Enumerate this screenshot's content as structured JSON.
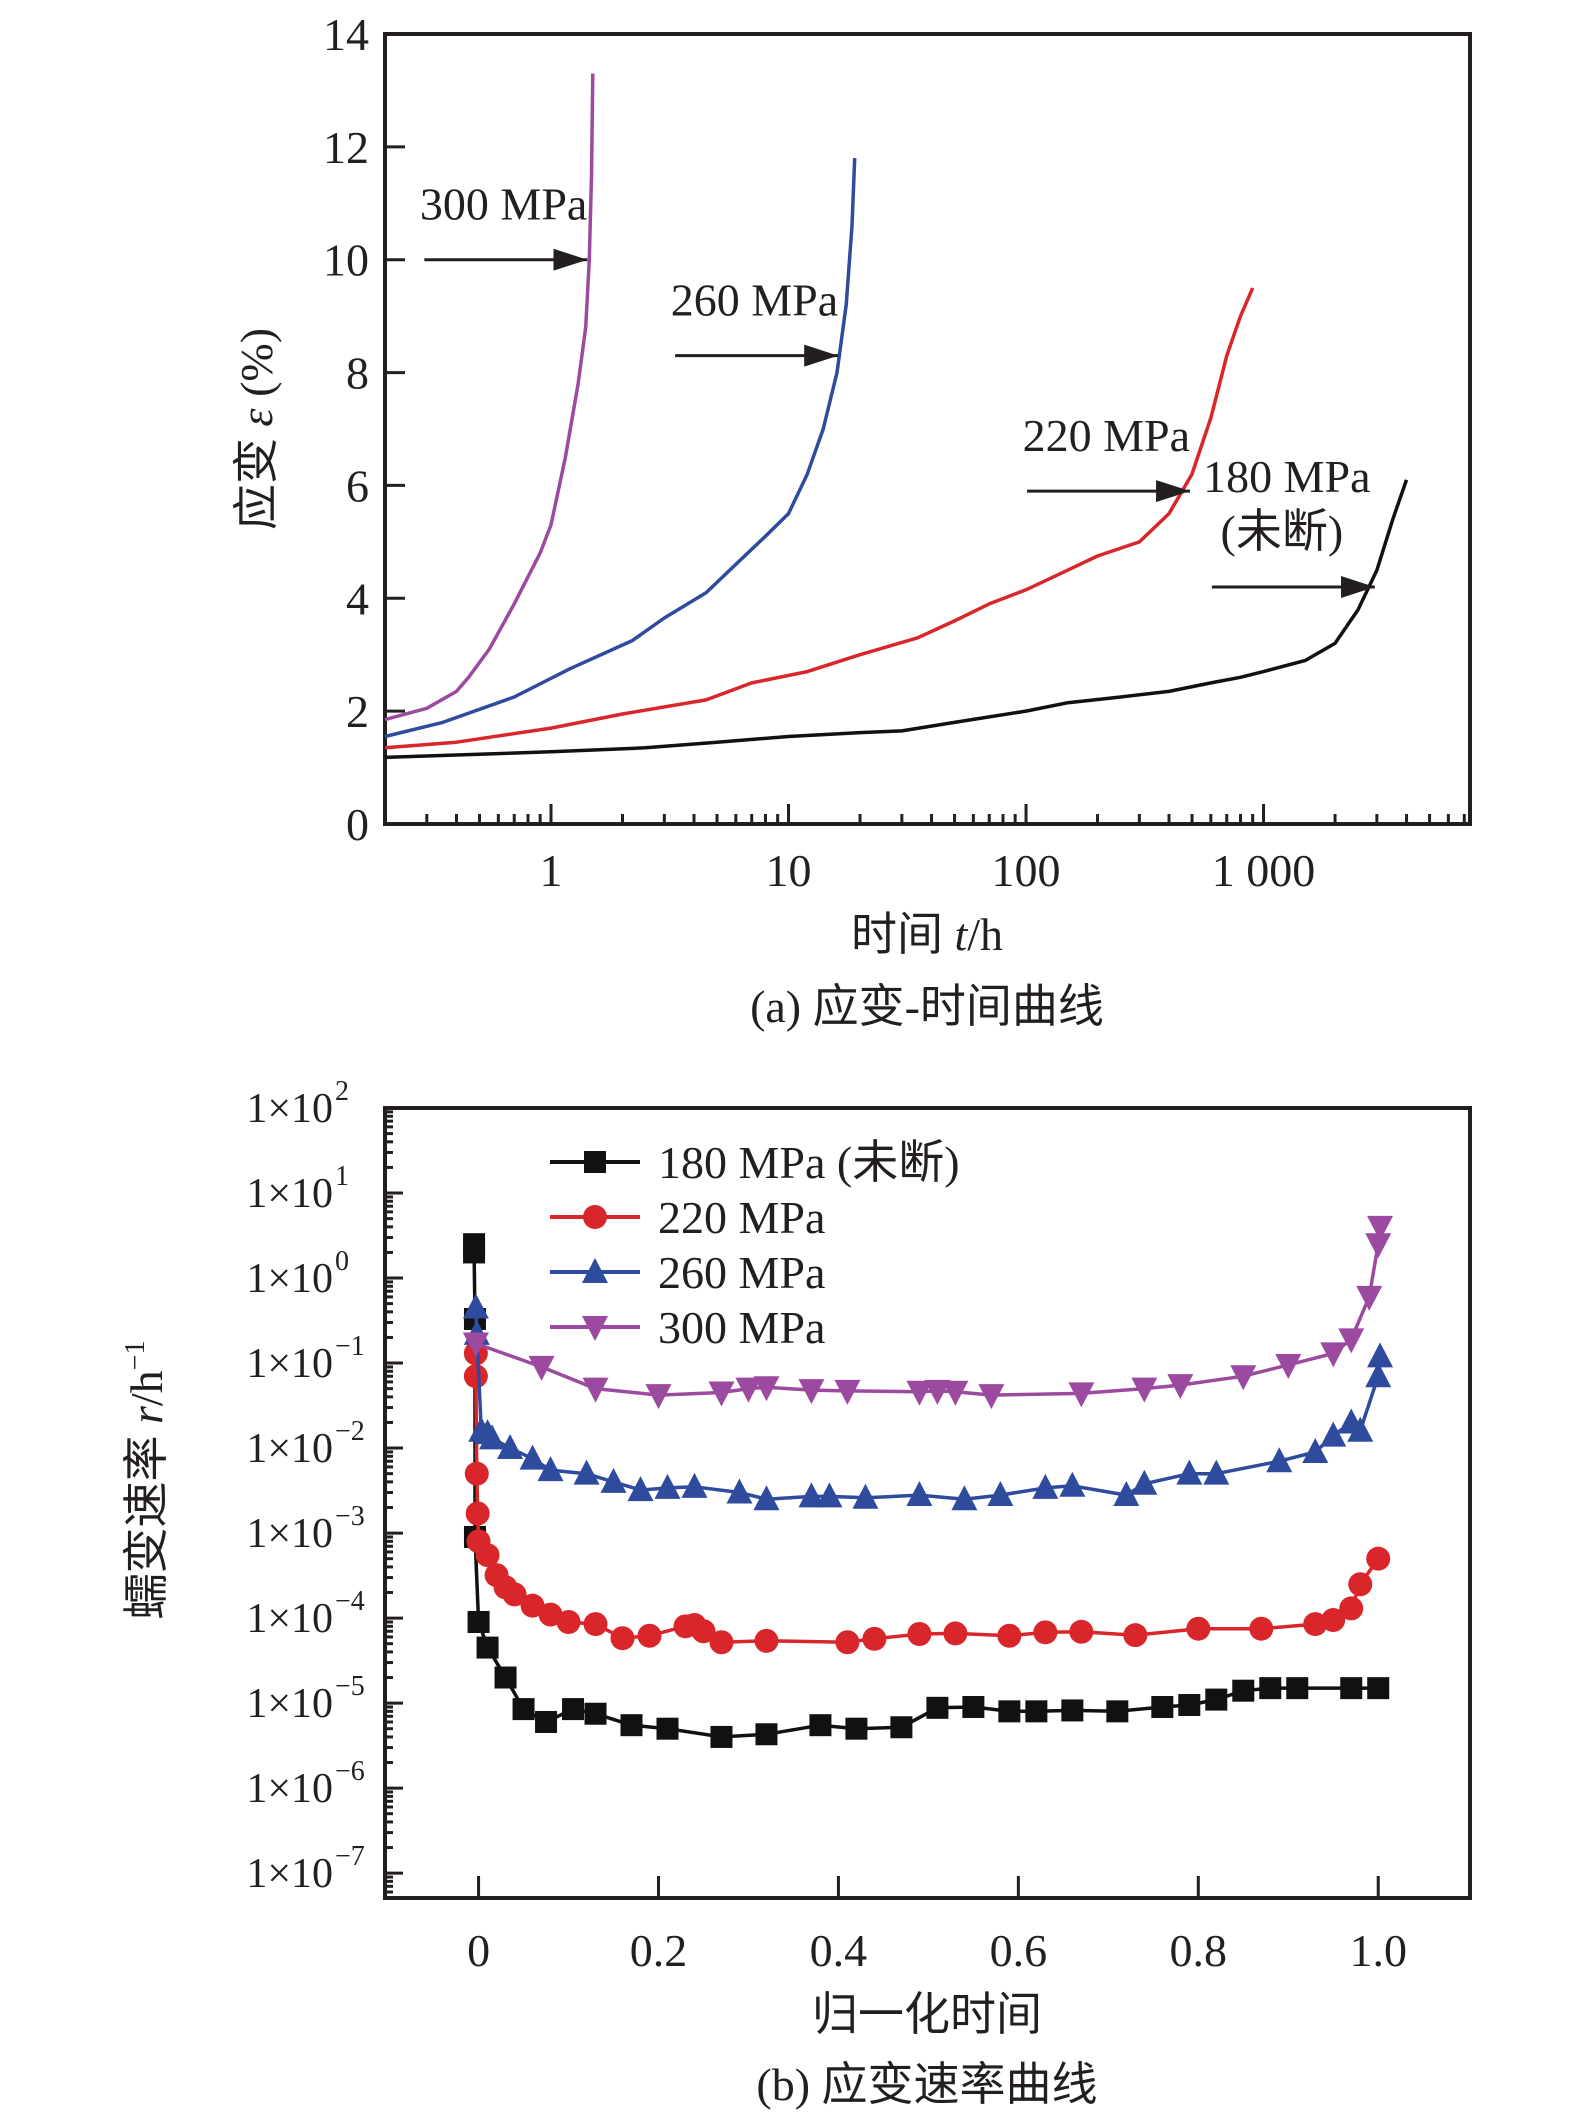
{
  "chart_data": [
    {
      "id": "a",
      "type": "line",
      "caption": "(a) 应变-时间曲线",
      "xlabel_prefix": "时间 ",
      "xlabel_var": "t",
      "xlabel_suffix": "/h",
      "ylabel_prefix": "应变 ",
      "ylabel_var": "ε",
      "ylabel_suffix": " (%)",
      "xscale": "log",
      "xlim": [
        0.2,
        7400
      ],
      "ylim": [
        0,
        14
      ],
      "xticks": [
        1,
        10,
        100,
        1000
      ],
      "xtick_labels": [
        "1",
        "10",
        "100",
        "1 000"
      ],
      "yticks": [
        0,
        2,
        4,
        6,
        8,
        10,
        12,
        14
      ],
      "ytick_labels": [
        "0",
        "2",
        "4",
        "6",
        "8",
        "10",
        "12",
        "14"
      ],
      "grid": false,
      "series": [
        {
          "name": "300 MPa",
          "color": "#9b4a9f",
          "x": [
            0.2,
            0.3,
            0.4,
            0.45,
            0.55,
            0.7,
            0.9,
            1.0,
            1.15,
            1.3,
            1.4,
            1.45,
            1.48,
            1.5
          ],
          "y": [
            1.85,
            2.05,
            2.35,
            2.6,
            3.1,
            3.9,
            4.8,
            5.3,
            6.5,
            7.8,
            8.8,
            10.0,
            11.5,
            13.3
          ]
        },
        {
          "name": "260 MPa",
          "color": "#2e4b9e",
          "x": [
            0.2,
            0.35,
            0.7,
            1.2,
            2.2,
            3,
            4.5,
            6,
            8,
            10,
            12,
            14,
            16,
            17.5,
            18.5,
            19
          ],
          "y": [
            1.55,
            1.8,
            2.25,
            2.75,
            3.25,
            3.65,
            4.1,
            4.6,
            5.1,
            5.5,
            6.2,
            7.0,
            8.0,
            9.2,
            10.6,
            11.8
          ]
        },
        {
          "name": "220 MPa",
          "color": "#d9262a",
          "x": [
            0.2,
            0.4,
            1,
            2,
            4.5,
            7,
            12,
            20,
            35,
            50,
            70,
            100,
            150,
            200,
            300,
            400,
            500,
            600,
            700,
            800,
            900
          ],
          "y": [
            1.35,
            1.45,
            1.7,
            1.95,
            2.2,
            2.5,
            2.7,
            3.0,
            3.3,
            3.6,
            3.9,
            4.15,
            4.5,
            4.75,
            5.0,
            5.5,
            6.2,
            7.2,
            8.3,
            9.0,
            9.5
          ]
        },
        {
          "name": "180 MPa (未断)",
          "color": "#111111",
          "x": [
            0.2,
            1,
            2.5,
            5,
            10,
            20,
            30,
            50,
            100,
            150,
            250,
            400,
            600,
            800,
            1000,
            1500,
            2000,
            2500,
            3000,
            3500,
            4000
          ],
          "y": [
            1.18,
            1.28,
            1.35,
            1.45,
            1.55,
            1.62,
            1.65,
            1.8,
            2.0,
            2.15,
            2.25,
            2.35,
            2.5,
            2.6,
            2.7,
            2.9,
            3.2,
            3.8,
            4.5,
            5.4,
            6.1
          ]
        }
      ],
      "annotations": [
        {
          "text": "300 MPa",
          "arrow_to": [
            1.45,
            10.0
          ]
        },
        {
          "text": "260 MPa",
          "arrow_to": [
            16.5,
            8.3
          ]
        },
        {
          "text": "220 MPa",
          "arrow_to": [
            500,
            5.9
          ]
        },
        {
          "text": "180 MPa",
          "text2": "(未断)",
          "arrow_to": [
            3000,
            4.2
          ]
        }
      ]
    },
    {
      "id": "b",
      "type": "line",
      "caption": "(b) 应变速率曲线",
      "xlabel": "归一化时间",
      "ylabel_prefix": "蠕变速率 ",
      "ylabel_var": "r",
      "ylabel_suffix": "/h",
      "ylabel_sup": "−1",
      "yscale": "log",
      "xlim": [
        -0.104,
        1.102
      ],
      "ylim": [
        5.1e-08,
        100
      ],
      "xticks": [
        0,
        0.2,
        0.4,
        0.6,
        0.8,
        1.0
      ],
      "xtick_labels": [
        "0",
        "0.2",
        "0.4",
        "0.6",
        "0.8",
        "1.0"
      ],
      "ytick_exponents": [
        2,
        1,
        0,
        -1,
        -2,
        -3,
        -4,
        -5,
        -6,
        -7
      ],
      "ytick_labels": [
        "1×10",
        "1×10",
        "1×10",
        "1×10",
        "1×10",
        "1×10",
        "1×10",
        "1×10",
        "1×10",
        "1×10"
      ],
      "ytick_sups": [
        "2",
        "1",
        "0",
        "−1",
        "−2",
        "−3",
        "−4",
        "−5",
        "−6",
        "−7"
      ],
      "grid": false,
      "legend_position": "top-left",
      "series": [
        {
          "name": "180 MPa (未断)",
          "color": "#111111",
          "marker": "square",
          "x": [
            -0.005,
            -0.005,
            -0.004,
            -0.004,
            0.0,
            0.01,
            0.03,
            0.05,
            0.075,
            0.105,
            0.13,
            0.17,
            0.21,
            0.27,
            0.32,
            0.38,
            0.42,
            0.47,
            0.51,
            0.55,
            0.59,
            0.62,
            0.66,
            0.71,
            0.76,
            0.79,
            0.82,
            0.85,
            0.88,
            0.91,
            0.97,
            1.0
          ],
          "y": [
            2.5,
            2.0,
            0.33,
            0.0009,
            9e-05,
            4.5e-05,
            2e-05,
            8.5e-06,
            6e-06,
            8.5e-06,
            7.5e-06,
            5.5e-06,
            5e-06,
            4e-06,
            4.3e-06,
            5.5e-06,
            5e-06,
            5.2e-06,
            8.8e-06,
            9e-06,
            8e-06,
            8e-06,
            8.2e-06,
            8e-06,
            9e-06,
            9.5e-06,
            1.1e-05,
            1.4e-05,
            1.5e-05,
            1.5e-05,
            1.5e-05,
            1.5e-05
          ]
        },
        {
          "name": "220 MPa",
          "color": "#d9262a",
          "marker": "circle",
          "x": [
            -0.003,
            -0.003,
            -0.002,
            -0.001,
            0.0,
            0.01,
            0.02,
            0.03,
            0.04,
            0.06,
            0.08,
            0.1,
            0.13,
            0.16,
            0.19,
            0.23,
            0.24,
            0.25,
            0.27,
            0.32,
            0.41,
            0.44,
            0.49,
            0.53,
            0.59,
            0.63,
            0.67,
            0.73,
            0.8,
            0.87,
            0.93,
            0.95,
            0.97,
            0.98,
            1.0
          ],
          "y": [
            0.13,
            0.07,
            0.005,
            0.0017,
            0.0008,
            0.00055,
            0.00032,
            0.00023,
            0.00019,
            0.00014,
            0.00011,
            9e-05,
            8.5e-05,
            5.8e-05,
            6.2e-05,
            8e-05,
            8.3e-05,
            7e-05,
            5.2e-05,
            5.4e-05,
            5.2e-05,
            5.7e-05,
            6.5e-05,
            6.6e-05,
            6.2e-05,
            6.8e-05,
            6.9e-05,
            6.3e-05,
            7.5e-05,
            7.5e-05,
            8.5e-05,
            9.5e-05,
            0.00013,
            0.00025,
            0.0005
          ]
        },
        {
          "name": "260 MPa",
          "color": "#2e4b9e",
          "marker": "triangle-up",
          "x": [
            -0.003,
            -0.002,
            0.003,
            0.01,
            0.015,
            0.035,
            0.06,
            0.08,
            0.12,
            0.15,
            0.18,
            0.21,
            0.24,
            0.29,
            0.32,
            0.37,
            0.39,
            0.43,
            0.49,
            0.54,
            0.58,
            0.63,
            0.66,
            0.72,
            0.74,
            0.79,
            0.82,
            0.89,
            0.93,
            0.95,
            0.97,
            0.98,
            1.0,
            1.002
          ],
          "y": [
            0.45,
            0.22,
            0.016,
            0.015,
            0.013,
            0.01,
            0.0075,
            0.0055,
            0.005,
            0.004,
            0.0032,
            0.0034,
            0.0035,
            0.003,
            0.0025,
            0.0027,
            0.0027,
            0.0026,
            0.0028,
            0.0025,
            0.0028,
            0.0034,
            0.0036,
            0.0028,
            0.0038,
            0.005,
            0.005,
            0.007,
            0.009,
            0.014,
            0.02,
            0.016,
            0.07,
            0.12
          ]
        },
        {
          "name": "300 MPa",
          "color": "#9b4a9f",
          "marker": "triangle-down",
          "x": [
            -0.003,
            0.07,
            0.13,
            0.2,
            0.27,
            0.3,
            0.32,
            0.37,
            0.41,
            0.49,
            0.51,
            0.53,
            0.57,
            0.67,
            0.74,
            0.78,
            0.85,
            0.9,
            0.95,
            0.97,
            0.99,
            1.0,
            1.002
          ],
          "y": [
            0.17,
            0.09,
            0.05,
            0.042,
            0.045,
            0.05,
            0.052,
            0.048,
            0.047,
            0.046,
            0.047,
            0.046,
            0.042,
            0.044,
            0.05,
            0.055,
            0.07,
            0.095,
            0.13,
            0.19,
            0.6,
            2.5,
            4.0
          ]
        }
      ]
    }
  ]
}
